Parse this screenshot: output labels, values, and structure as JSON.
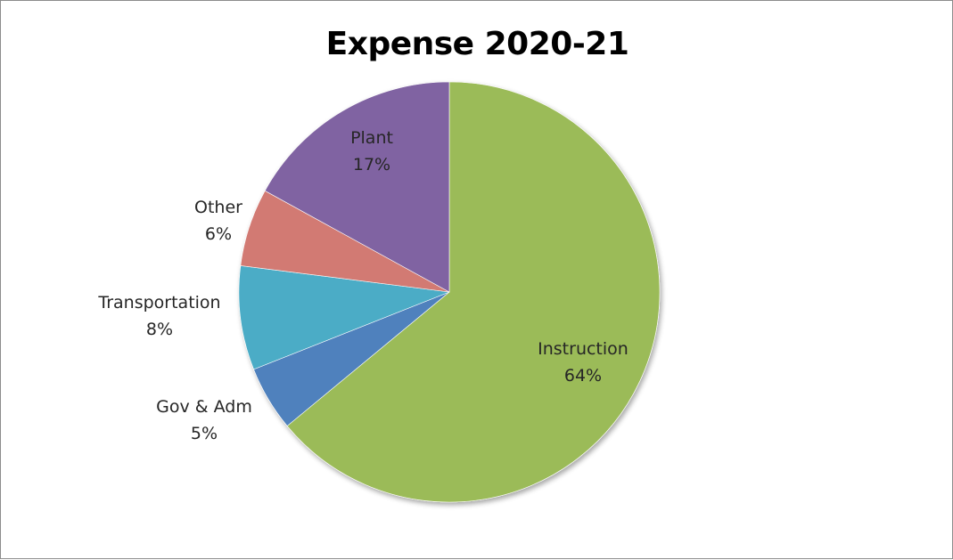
{
  "chart_data": {
    "type": "pie",
    "title": "Expense 2020-21",
    "slices": [
      {
        "label": "Instruction",
        "value": 64,
        "pct_label": "64%",
        "color": "#9bbb59"
      },
      {
        "label": "Gov & Adm",
        "value": 5,
        "pct_label": "5%",
        "color": "#4f81bd"
      },
      {
        "label": "Transportation",
        "value": 8,
        "pct_label": "8%",
        "color": "#4bacc6"
      },
      {
        "label": "Other",
        "value": 6,
        "pct_label": "6%",
        "color": "#d27a73"
      },
      {
        "label": "Plant",
        "value": 17,
        "pct_label": "17%",
        "color": "#8064a2"
      }
    ],
    "start_angle_deg": 0,
    "direction": "clockwise",
    "legend": "none",
    "data_labels": "category-and-percent"
  }
}
